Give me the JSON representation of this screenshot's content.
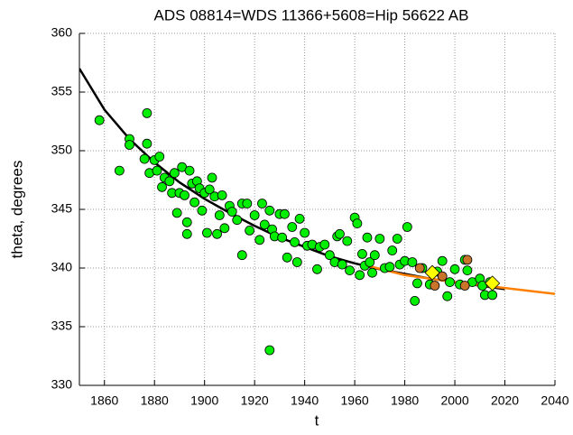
{
  "chart_data": {
    "type": "scatter",
    "title": "ADS 08814=WDS 11366+5608=Hip 56622 AB",
    "xlabel": "t",
    "ylabel": "theta, degrees",
    "xlim": [
      1850,
      2040
    ],
    "xticks": [
      1860,
      1880,
      1900,
      1920,
      1940,
      1960,
      1980,
      2000,
      2020,
      2040
    ],
    "ylim": [
      330,
      360
    ],
    "yticks": [
      330,
      335,
      340,
      345,
      350,
      355,
      360
    ],
    "grid": true,
    "series": [
      {
        "mode": "line",
        "color": "#000000",
        "x": [
          1850,
          1860,
          1870,
          1880,
          1890,
          1900,
          1910,
          1920,
          1930,
          1940,
          1950,
          1960,
          1970,
          1980,
          1990,
          2000,
          2010,
          2020
        ],
        "values": [
          357.0,
          353.5,
          351.0,
          349.0,
          347.3,
          345.9,
          344.7,
          343.6,
          342.6,
          341.8,
          341.0,
          340.4,
          339.9,
          339.5,
          339.1,
          338.8,
          338.5,
          338.2
        ]
      },
      {
        "mode": "line",
        "color": "#ff7f00",
        "x": [
          1965,
          1980,
          2000,
          2020,
          2040
        ],
        "values": [
          340.2,
          339.4,
          338.8,
          338.3,
          337.8
        ]
      },
      {
        "mode": "marker",
        "marker": "circle",
        "color": "#00ee00",
        "x": [
          1858,
          1866,
          1870,
          1870,
          1876,
          1877,
          1877,
          1878,
          1880,
          1881,
          1882,
          1883,
          1884,
          1886,
          1887,
          1888,
          1889,
          1890,
          1891,
          1892,
          1893,
          1893,
          1894,
          1895,
          1896,
          1897,
          1898,
          1899,
          1900,
          1901,
          1902,
          1903,
          1904,
          1905,
          1906,
          1907,
          1908,
          1910,
          1911,
          1913,
          1915,
          1915,
          1917,
          1918,
          1920,
          1922,
          1923,
          1924,
          1926,
          1926,
          1927,
          1928,
          1930,
          1931,
          1932,
          1933,
          1935,
          1936,
          1937,
          1938,
          1940,
          1941,
          1943,
          1945,
          1946,
          1948,
          1950,
          1952,
          1953,
          1954,
          1955,
          1957,
          1958,
          1960,
          1961,
          1962,
          1963,
          1964,
          1965,
          1966,
          1967,
          1968,
          1970,
          1972,
          1974,
          1975,
          1977,
          1978,
          1980,
          1981,
          1983,
          1984,
          1985,
          1987,
          1990,
          1993,
          1995,
          1997,
          1998,
          2000,
          2002,
          2004,
          2005,
          2007,
          2010,
          2011,
          2012,
          2014,
          2015
        ],
        "values": [
          352.6,
          348.3,
          351,
          350.5,
          349.3,
          353.2,
          350.6,
          348.1,
          349.2,
          348.3,
          349.5,
          346.9,
          347.7,
          347.4,
          346.4,
          348.1,
          344.7,
          346.4,
          348.6,
          346.2,
          343.9,
          342.9,
          348.3,
          347.2,
          345.6,
          347.4,
          346.8,
          344.9,
          346.4,
          343,
          346.7,
          347.7,
          346.1,
          342.9,
          344.5,
          346.2,
          343.4,
          345.3,
          344.8,
          344.1,
          341.1,
          345.5,
          345.5,
          343.2,
          344.5,
          342.4,
          345.5,
          343.7,
          333,
          344.9,
          343.3,
          342.7,
          344.6,
          342.6,
          344.6,
          340.9,
          343.5,
          342.2,
          340.5,
          344.2,
          343,
          341.9,
          342,
          339.9,
          341.8,
          342,
          341.1,
          340.5,
          342.7,
          342.9,
          340.3,
          342.3,
          339.8,
          344.3,
          343.8,
          339.4,
          341.2,
          340.2,
          342.6,
          340.5,
          339.6,
          341.1,
          342.5,
          340,
          340.1,
          341.5,
          342.5,
          340.3,
          340.6,
          343.5,
          340.5,
          337.2,
          338.7,
          340,
          338.6,
          339.7,
          340.6,
          337.6,
          338.8,
          339.9,
          338.6,
          340.7,
          339.8,
          338.8,
          339.1,
          338.5,
          337.7,
          338.8,
          337.7
        ]
      },
      {
        "mode": "marker",
        "marker": "circle",
        "color": "#c8742a",
        "x": [
          1986,
          1992,
          1995,
          2004,
          2005
        ],
        "values": [
          340,
          338.5,
          339.3,
          338.5,
          340.7
        ]
      },
      {
        "mode": "marker",
        "marker": "diamond",
        "color": "#ffff00",
        "x": [
          1991,
          2015
        ],
        "values": [
          339.6,
          338.7
        ]
      }
    ]
  }
}
